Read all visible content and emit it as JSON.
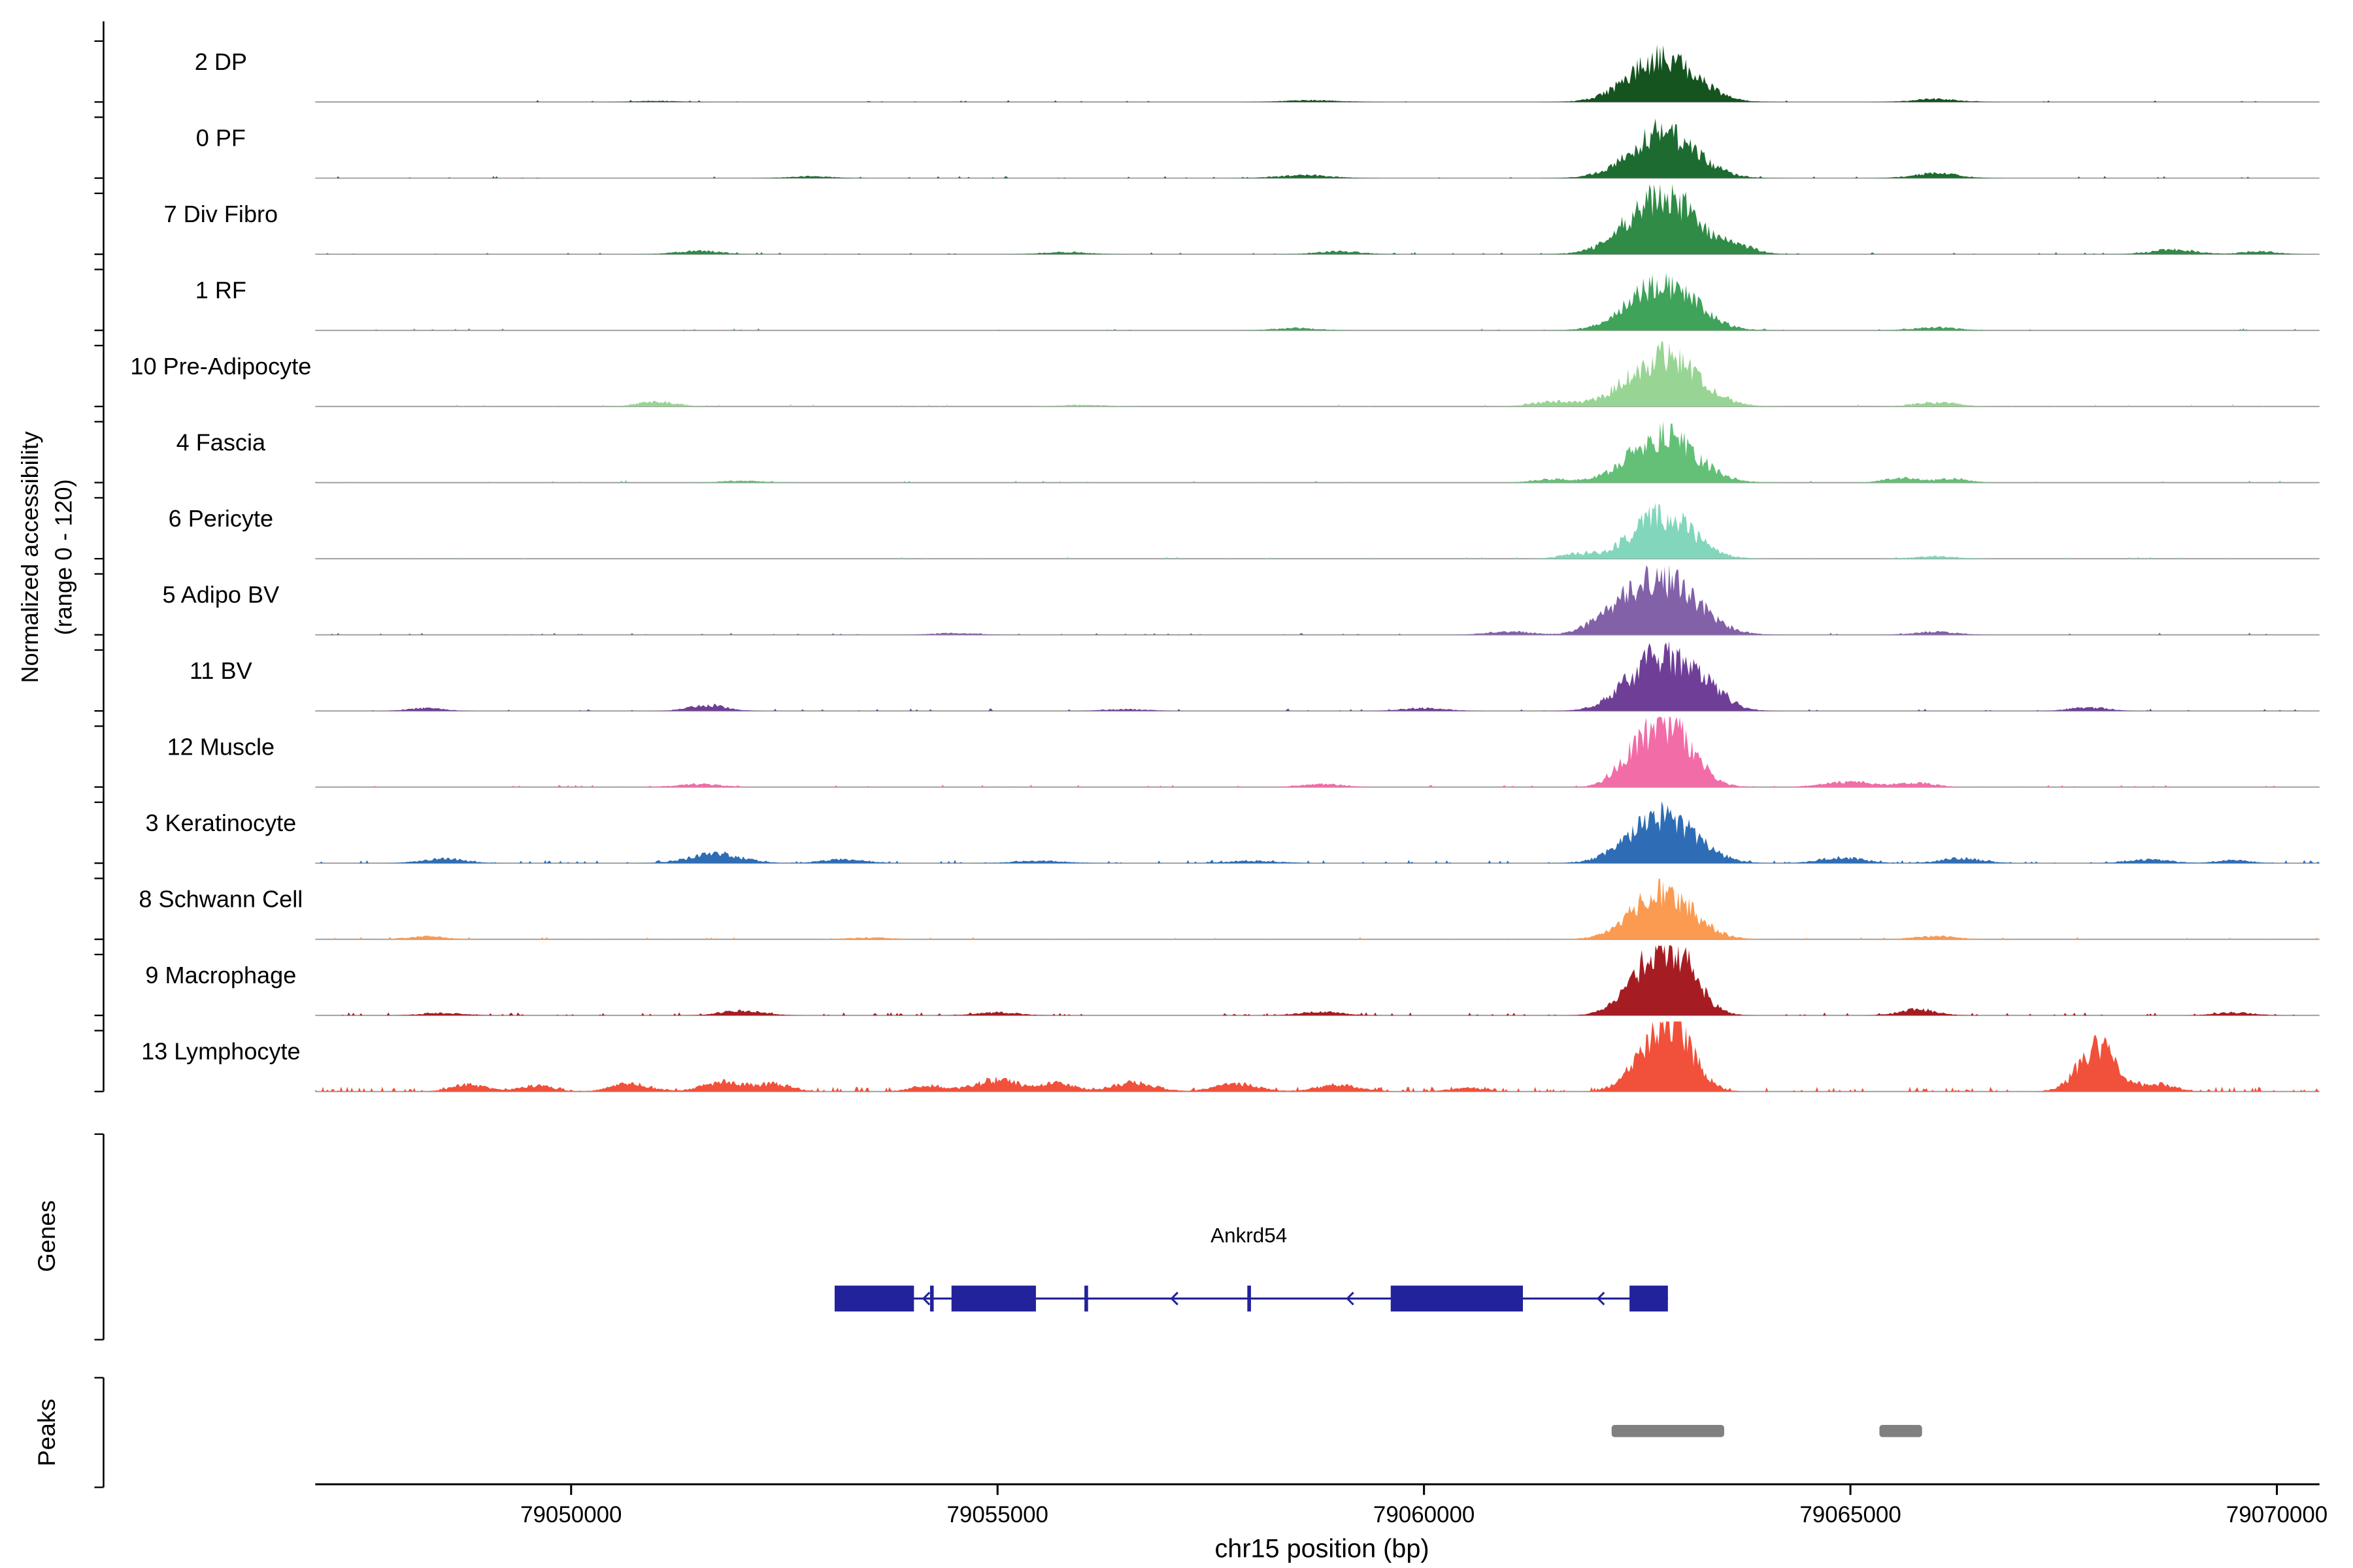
{
  "figure": {
    "ylabel_line1": "Normalized accessibility",
    "ylabel_line2": "(range 0 - 120)",
    "genes_section_label": "Genes",
    "peaks_section_label": "Peaks",
    "xlabel": "chr15 position (bp)"
  },
  "chart_data": {
    "type": "area",
    "subtype": "genome-browser-accessibility-tracks",
    "title": "",
    "xlabel": "chr15 position (bp)",
    "ylabel": "Normalized accessibility (range 0 - 120)",
    "y_range_per_track": [
      0,
      120
    ],
    "x_range_bp": [
      79047000,
      79070500
    ],
    "grid": false,
    "legend": "none",
    "x_ticks": [
      {
        "bp": 79050000,
        "label": "79050000"
      },
      {
        "bp": 79055000,
        "label": "79055000"
      },
      {
        "bp": 79060000,
        "label": "79060000"
      },
      {
        "bp": 79065000,
        "label": "79065000"
      },
      {
        "bp": 79070000,
        "label": "79070000"
      }
    ],
    "tracks": [
      {
        "label": "2 DP",
        "color": "#15531f",
        "noise": 0.12,
        "bumps": [
          [
            79062800,
            380,
            75
          ],
          [
            79066000,
            260,
            5
          ],
          [
            79058700,
            300,
            3
          ],
          [
            79051000,
            220,
            2
          ]
        ]
      },
      {
        "label": "0 PF",
        "color": "#1d6b30",
        "noise": 0.15,
        "bumps": [
          [
            79062800,
            380,
            80
          ],
          [
            79066000,
            260,
            8
          ],
          [
            79058600,
            300,
            5
          ],
          [
            79052800,
            250,
            3
          ]
        ]
      },
      {
        "label": "7 Div Fibro",
        "color": "#2f8b46",
        "noise": 0.2,
        "bumps": [
          [
            79062800,
            400,
            100
          ],
          [
            79063700,
            200,
            10
          ],
          [
            79051500,
            250,
            6
          ],
          [
            79055800,
            250,
            4
          ],
          [
            79059000,
            250,
            5
          ],
          [
            79068800,
            260,
            8
          ],
          [
            79069800,
            200,
            5
          ]
        ]
      },
      {
        "label": "1 RF",
        "color": "#3fa35a",
        "noise": 0.15,
        "bumps": [
          [
            79062800,
            380,
            80
          ],
          [
            79066000,
            250,
            5
          ],
          [
            79058500,
            250,
            4
          ]
        ]
      },
      {
        "label": "10 Pre-Adipocyte",
        "color": "#98d594",
        "noise": 0.2,
        "bumps": [
          [
            79062800,
            400,
            85
          ],
          [
            79051000,
            220,
            8
          ],
          [
            79061500,
            250,
            8
          ],
          [
            79066000,
            250,
            7
          ],
          [
            79056000,
            250,
            3
          ]
        ]
      },
      {
        "label": "4 Fascia",
        "color": "#63c076",
        "noise": 0.18,
        "bumps": [
          [
            79062800,
            380,
            80
          ],
          [
            79065600,
            200,
            8
          ],
          [
            79066200,
            180,
            7
          ],
          [
            79061500,
            220,
            6
          ],
          [
            79052000,
            250,
            3
          ]
        ]
      },
      {
        "label": "6 Pericyte",
        "color": "#82d6bc",
        "noise": 0.12,
        "bumps": [
          [
            79062800,
            350,
            75
          ],
          [
            79061800,
            200,
            8
          ],
          [
            79066000,
            250,
            4
          ]
        ]
      },
      {
        "label": "5 Adipo BV",
        "color": "#8261a8",
        "noise": 0.18,
        "bumps": [
          [
            79062800,
            400,
            95
          ],
          [
            79062200,
            250,
            20
          ],
          [
            79061000,
            250,
            6
          ],
          [
            79054500,
            250,
            3
          ],
          [
            79066000,
            250,
            5
          ]
        ]
      },
      {
        "label": "11 BV",
        "color": "#6f3f97",
        "noise": 0.25,
        "bumps": [
          [
            79062800,
            380,
            95
          ],
          [
            79063400,
            200,
            15
          ],
          [
            79051600,
            220,
            10
          ],
          [
            79048300,
            200,
            5
          ],
          [
            79060000,
            250,
            5
          ],
          [
            79067800,
            220,
            6
          ],
          [
            79056500,
            250,
            3
          ]
        ]
      },
      {
        "label": "12 Muscle",
        "color": "#f26ca8",
        "noise": 0.22,
        "bumps": [
          [
            79062850,
            300,
            105
          ],
          [
            79062400,
            200,
            25
          ],
          [
            79065000,
            300,
            9
          ],
          [
            79065800,
            200,
            7
          ],
          [
            79051500,
            250,
            5
          ],
          [
            79058800,
            250,
            5
          ]
        ]
      },
      {
        "label": "3 Keratinocyte",
        "color": "#2e6db5",
        "noise": 0.5,
        "bumps": [
          [
            79062800,
            380,
            80
          ],
          [
            79051700,
            300,
            16
          ],
          [
            79048500,
            250,
            8
          ],
          [
            79053200,
            250,
            7
          ],
          [
            79064900,
            250,
            10
          ],
          [
            79066300,
            250,
            8
          ],
          [
            79068500,
            250,
            6
          ],
          [
            79069500,
            200,
            5
          ],
          [
            79055500,
            300,
            4
          ],
          [
            79058000,
            300,
            4
          ]
        ]
      },
      {
        "label": "8 Schwann Cell",
        "color": "#fb9a51",
        "noise": 0.2,
        "bumps": [
          [
            79062800,
            350,
            80
          ],
          [
            79048300,
            220,
            5
          ],
          [
            79066000,
            250,
            5
          ],
          [
            79053500,
            250,
            3
          ]
        ]
      },
      {
        "label": "9 Macrophage",
        "color": "#a51d22",
        "noise": 0.45,
        "bumps": [
          [
            79062700,
            300,
            80
          ],
          [
            79063000,
            250,
            60
          ],
          [
            79052000,
            250,
            8
          ],
          [
            79055000,
            250,
            5
          ],
          [
            79058800,
            250,
            6
          ],
          [
            79065800,
            220,
            10
          ],
          [
            79069500,
            220,
            5
          ],
          [
            79048500,
            250,
            4
          ]
        ]
      },
      {
        "label": "13 Lymphocyte",
        "color": "#f1503a",
        "noise": 0.9,
        "bumps": [
          [
            79062900,
            250,
            112
          ],
          [
            79062500,
            200,
            30
          ],
          [
            79067900,
            220,
            75
          ],
          [
            79068600,
            200,
            12
          ],
          [
            79048800,
            200,
            12
          ],
          [
            79049600,
            200,
            10
          ],
          [
            79050700,
            220,
            14
          ],
          [
            79051800,
            250,
            16
          ],
          [
            79052400,
            200,
            12
          ],
          [
            79054200,
            200,
            10
          ],
          [
            79055000,
            250,
            20
          ],
          [
            79055700,
            200,
            14
          ],
          [
            79056600,
            250,
            15
          ],
          [
            79057800,
            250,
            13
          ],
          [
            79059000,
            250,
            12
          ],
          [
            79060500,
            200,
            6
          ]
        ]
      }
    ],
    "gene": {
      "name": "Ankrd54",
      "strand": "-",
      "start": 79053090,
      "end": 79062860,
      "exons": [
        [
          79053090,
          79054020
        ],
        [
          79054460,
          79055450
        ],
        [
          79059610,
          79061160
        ],
        [
          79062410,
          79062860
        ]
      ],
      "thin_marks": [
        79054230,
        79056040,
        79057950
      ],
      "arrows": [
        79054140,
        79057050,
        79059110,
        79062050
      ],
      "name_label_bp": 79057950
    },
    "peaks_bp": [
      [
        79062200,
        79063520
      ],
      [
        79065340,
        79065840
      ]
    ]
  }
}
